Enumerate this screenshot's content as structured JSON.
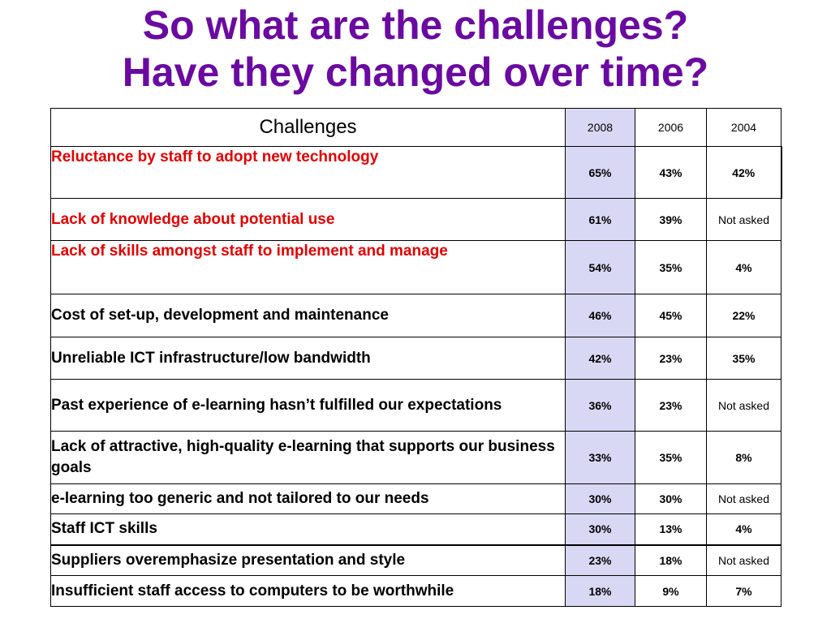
{
  "title": {
    "line1": "So what are the challenges?",
    "line2": "Have they changed over time?"
  },
  "colors": {
    "title": "#6a0aa0",
    "highlight_text": "#e00000",
    "col_2008_bg": "#d8d8f4"
  },
  "table": {
    "headers": [
      "Challenges",
      "2008",
      "2006",
      "2004"
    ],
    "rows": [
      {
        "challenge": "Reluctance by staff to adopt new technology",
        "v2008": "65%",
        "v2006": "43%",
        "v2004": "42%",
        "highlight": true
      },
      {
        "challenge": "Lack of knowledge about potential use",
        "v2008": "61%",
        "v2006": "39%",
        "v2004": "Not asked",
        "highlight": true
      },
      {
        "challenge": "Lack of skills amongst staff to implement and manage",
        "v2008": "54%",
        "v2006": "35%",
        "v2004": "4%",
        "highlight": true
      },
      {
        "challenge": "Cost of set-up, development and maintenance",
        "v2008": "46%",
        "v2006": "45%",
        "v2004": "22%",
        "highlight": false
      },
      {
        "challenge": "Unreliable ICT infrastructure/low bandwidth",
        "v2008": "42%",
        "v2006": "23%",
        "v2004": "35%",
        "highlight": false
      },
      {
        "challenge": "Past experience of e-learning hasn’t fulfilled our expectations",
        "v2008": "36%",
        "v2006": "23%",
        "v2004": "Not asked",
        "highlight": false
      },
      {
        "challenge": "Lack of attractive, high-quality e-learning that supports our business goals",
        "v2008": "33%",
        "v2006": "35%",
        "v2004": "8%",
        "highlight": false
      },
      {
        "challenge": "e-learning too generic and not tailored to our needs",
        "v2008": "30%",
        "v2006": "30%",
        "v2004": "Not asked",
        "highlight": false
      },
      {
        "challenge": "Staff ICT skills",
        "v2008": "30%",
        "v2006": "13%",
        "v2004": "4%",
        "highlight": false
      },
      {
        "challenge": "Suppliers overemphasize presentation and style",
        "v2008": "23%",
        "v2006": "18%",
        "v2004": "Not asked",
        "highlight": false
      },
      {
        "challenge": "Insufficient staff access to computers to be worthwhile",
        "v2008": "18%",
        "v2006": "9%",
        "v2004": "7%",
        "highlight": false
      }
    ]
  }
}
